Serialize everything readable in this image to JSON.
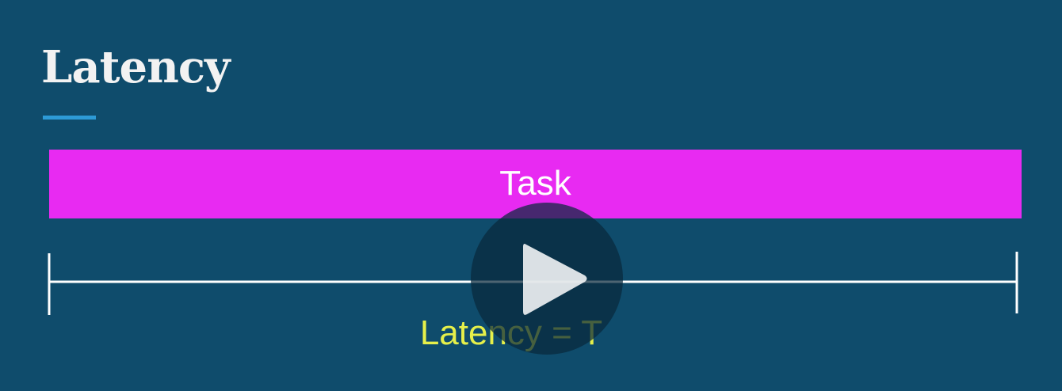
{
  "slide": {
    "title": "Latency"
  },
  "diagram": {
    "task_label": "Task",
    "latency_label": "Latency = T"
  },
  "colors": {
    "background": "#0f4c6c",
    "title_underline": "#2d9ad6",
    "task_bar": "#e82af2",
    "timeline": "#ffffff",
    "latency_label": "#e6f04a"
  },
  "video_overlay": {
    "icon": "play-icon"
  }
}
